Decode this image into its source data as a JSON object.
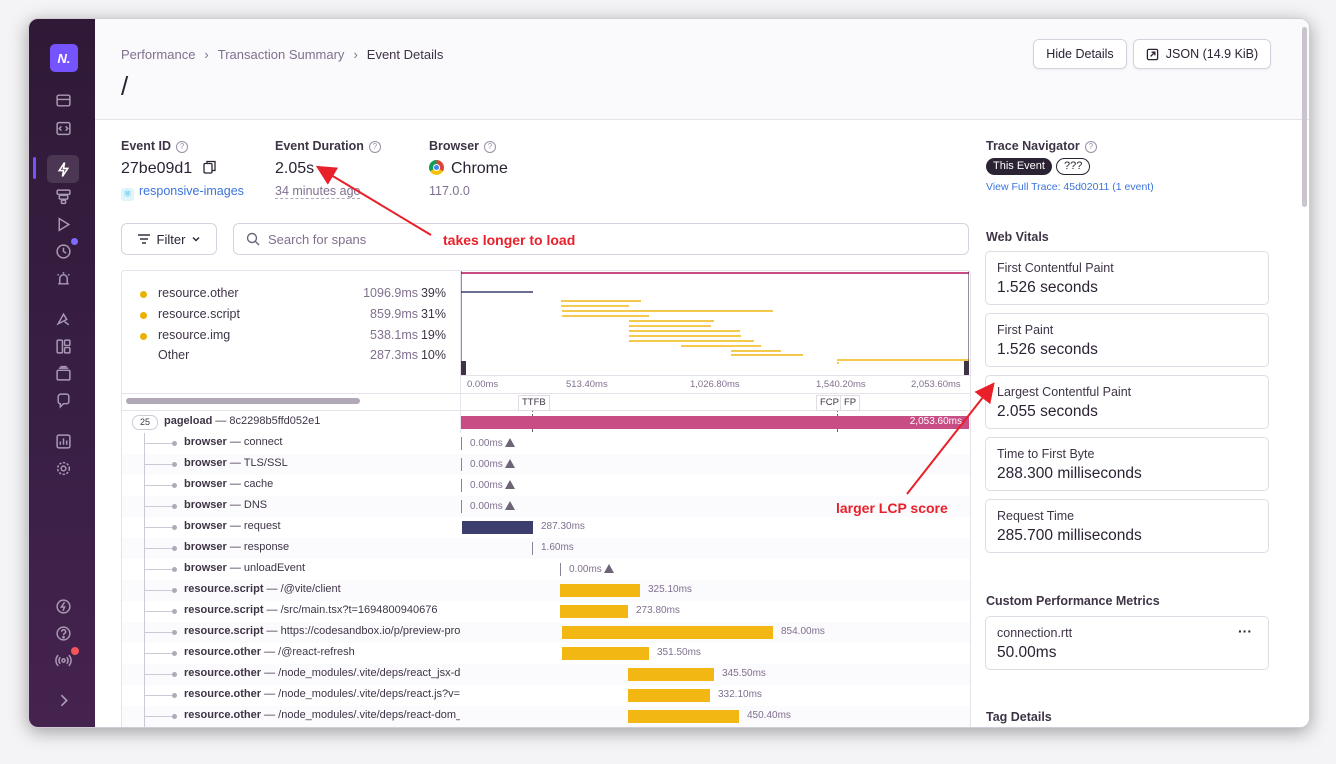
{
  "breadcrumbs": [
    "Performance",
    "Transaction Summary",
    "Event Details"
  ],
  "page_title": "/",
  "header_buttons": {
    "hide_details": "Hide Details",
    "json": "JSON (14.9 KiB)"
  },
  "event": {
    "id_label": "Event ID",
    "id_value": "27be09d1",
    "project": "responsive-images",
    "duration_label": "Event Duration",
    "duration_value": "2.05s",
    "duration_ago": "34 minutes ago",
    "browser_label": "Browser",
    "browser_value": "Chrome",
    "browser_version": "117.0.0"
  },
  "trace": {
    "label": "Trace Navigator",
    "this_event": "This Event",
    "unknown": "???",
    "full_trace": "View Full Trace: 45d02011 (1 event)"
  },
  "filter": {
    "label": "Filter",
    "search_placeholder": "Search for spans"
  },
  "legend": [
    {
      "name": "resource.other",
      "ms": "1096.9ms",
      "pct": "39%",
      "dot": true
    },
    {
      "name": "resource.script",
      "ms": "859.9ms",
      "pct": "31%",
      "dot": true
    },
    {
      "name": "resource.img",
      "ms": "538.1ms",
      "pct": "19%",
      "dot": true
    },
    {
      "name": "Other",
      "ms": "287.3ms",
      "pct": "10%",
      "dot": false
    }
  ],
  "axis_ticks": [
    "0.00ms",
    "513.40ms",
    "1,026.80ms",
    "1,540.20ms",
    "2,053.60ms"
  ],
  "markers": [
    "TTFB",
    "FCP",
    "FP"
  ],
  "root_span": {
    "count": "25",
    "op": "pageload",
    "desc": "8c2298b5ffd052e1",
    "duration": "2,053.60ms"
  },
  "spans": [
    {
      "op": "browser",
      "desc": "connect",
      "time": "0.00ms",
      "warn": true
    },
    {
      "op": "browser",
      "desc": "TLS/SSL",
      "time": "0.00ms",
      "warn": true
    },
    {
      "op": "browser",
      "desc": "cache",
      "time": "0.00ms",
      "warn": true
    },
    {
      "op": "browser",
      "desc": "DNS",
      "time": "0.00ms",
      "warn": true
    },
    {
      "op": "browser",
      "desc": "request",
      "time": "287.30ms",
      "warn": false
    },
    {
      "op": "browser",
      "desc": "response",
      "time": "1.60ms",
      "warn": false
    },
    {
      "op": "browser",
      "desc": "unloadEvent",
      "time": "0.00ms",
      "warn": true
    },
    {
      "op": "resource.script",
      "desc": "/@vite/client",
      "time": "325.10ms",
      "warn": false
    },
    {
      "op": "resource.script",
      "desc": "/src/main.tsx?t=1694800940676",
      "time": "273.80ms",
      "warn": false
    },
    {
      "op": "resource.script",
      "desc": "https://codesandbox.io/p/preview-protocol.js",
      "time": "854.00ms",
      "warn": false
    },
    {
      "op": "resource.other",
      "desc": "/@react-refresh",
      "time": "351.50ms",
      "warn": false
    },
    {
      "op": "resource.other",
      "desc": "/node_modules/.vite/deps/react_jsx-dev-runtime.js",
      "time": "345.50ms",
      "warn": false
    },
    {
      "op": "resource.other",
      "desc": "/node_modules/.vite/deps/react.js?v=",
      "time": "332.10ms",
      "warn": false
    },
    {
      "op": "resource.other",
      "desc": "/node_modules/.vite/deps/react-dom_client.js",
      "time": "450.40ms",
      "warn": false
    }
  ],
  "web_vitals": {
    "label": "Web Vitals",
    "items": [
      {
        "name": "First Contentful Paint",
        "value": "1.526 seconds"
      },
      {
        "name": "First Paint",
        "value": "1.526 seconds"
      },
      {
        "name": "Largest Contentful Paint",
        "value": "2.055 seconds"
      },
      {
        "name": "Time to First Byte",
        "value": "288.300 milliseconds"
      },
      {
        "name": "Request Time",
        "value": "285.700 milliseconds"
      }
    ]
  },
  "custom_metrics": {
    "label": "Custom Performance Metrics",
    "name": "connection.rtt",
    "value": "50.00ms",
    "more": "···"
  },
  "tag_details": "Tag Details",
  "annotations": {
    "slow": "takes longer to load",
    "lcp": "larger LCP score"
  },
  "colors": {
    "accent": "#7553ff",
    "pageload": "#c84d85",
    "resource": "#f2b712",
    "browser": "#3c3f6e",
    "annotation": "#e8202a"
  }
}
